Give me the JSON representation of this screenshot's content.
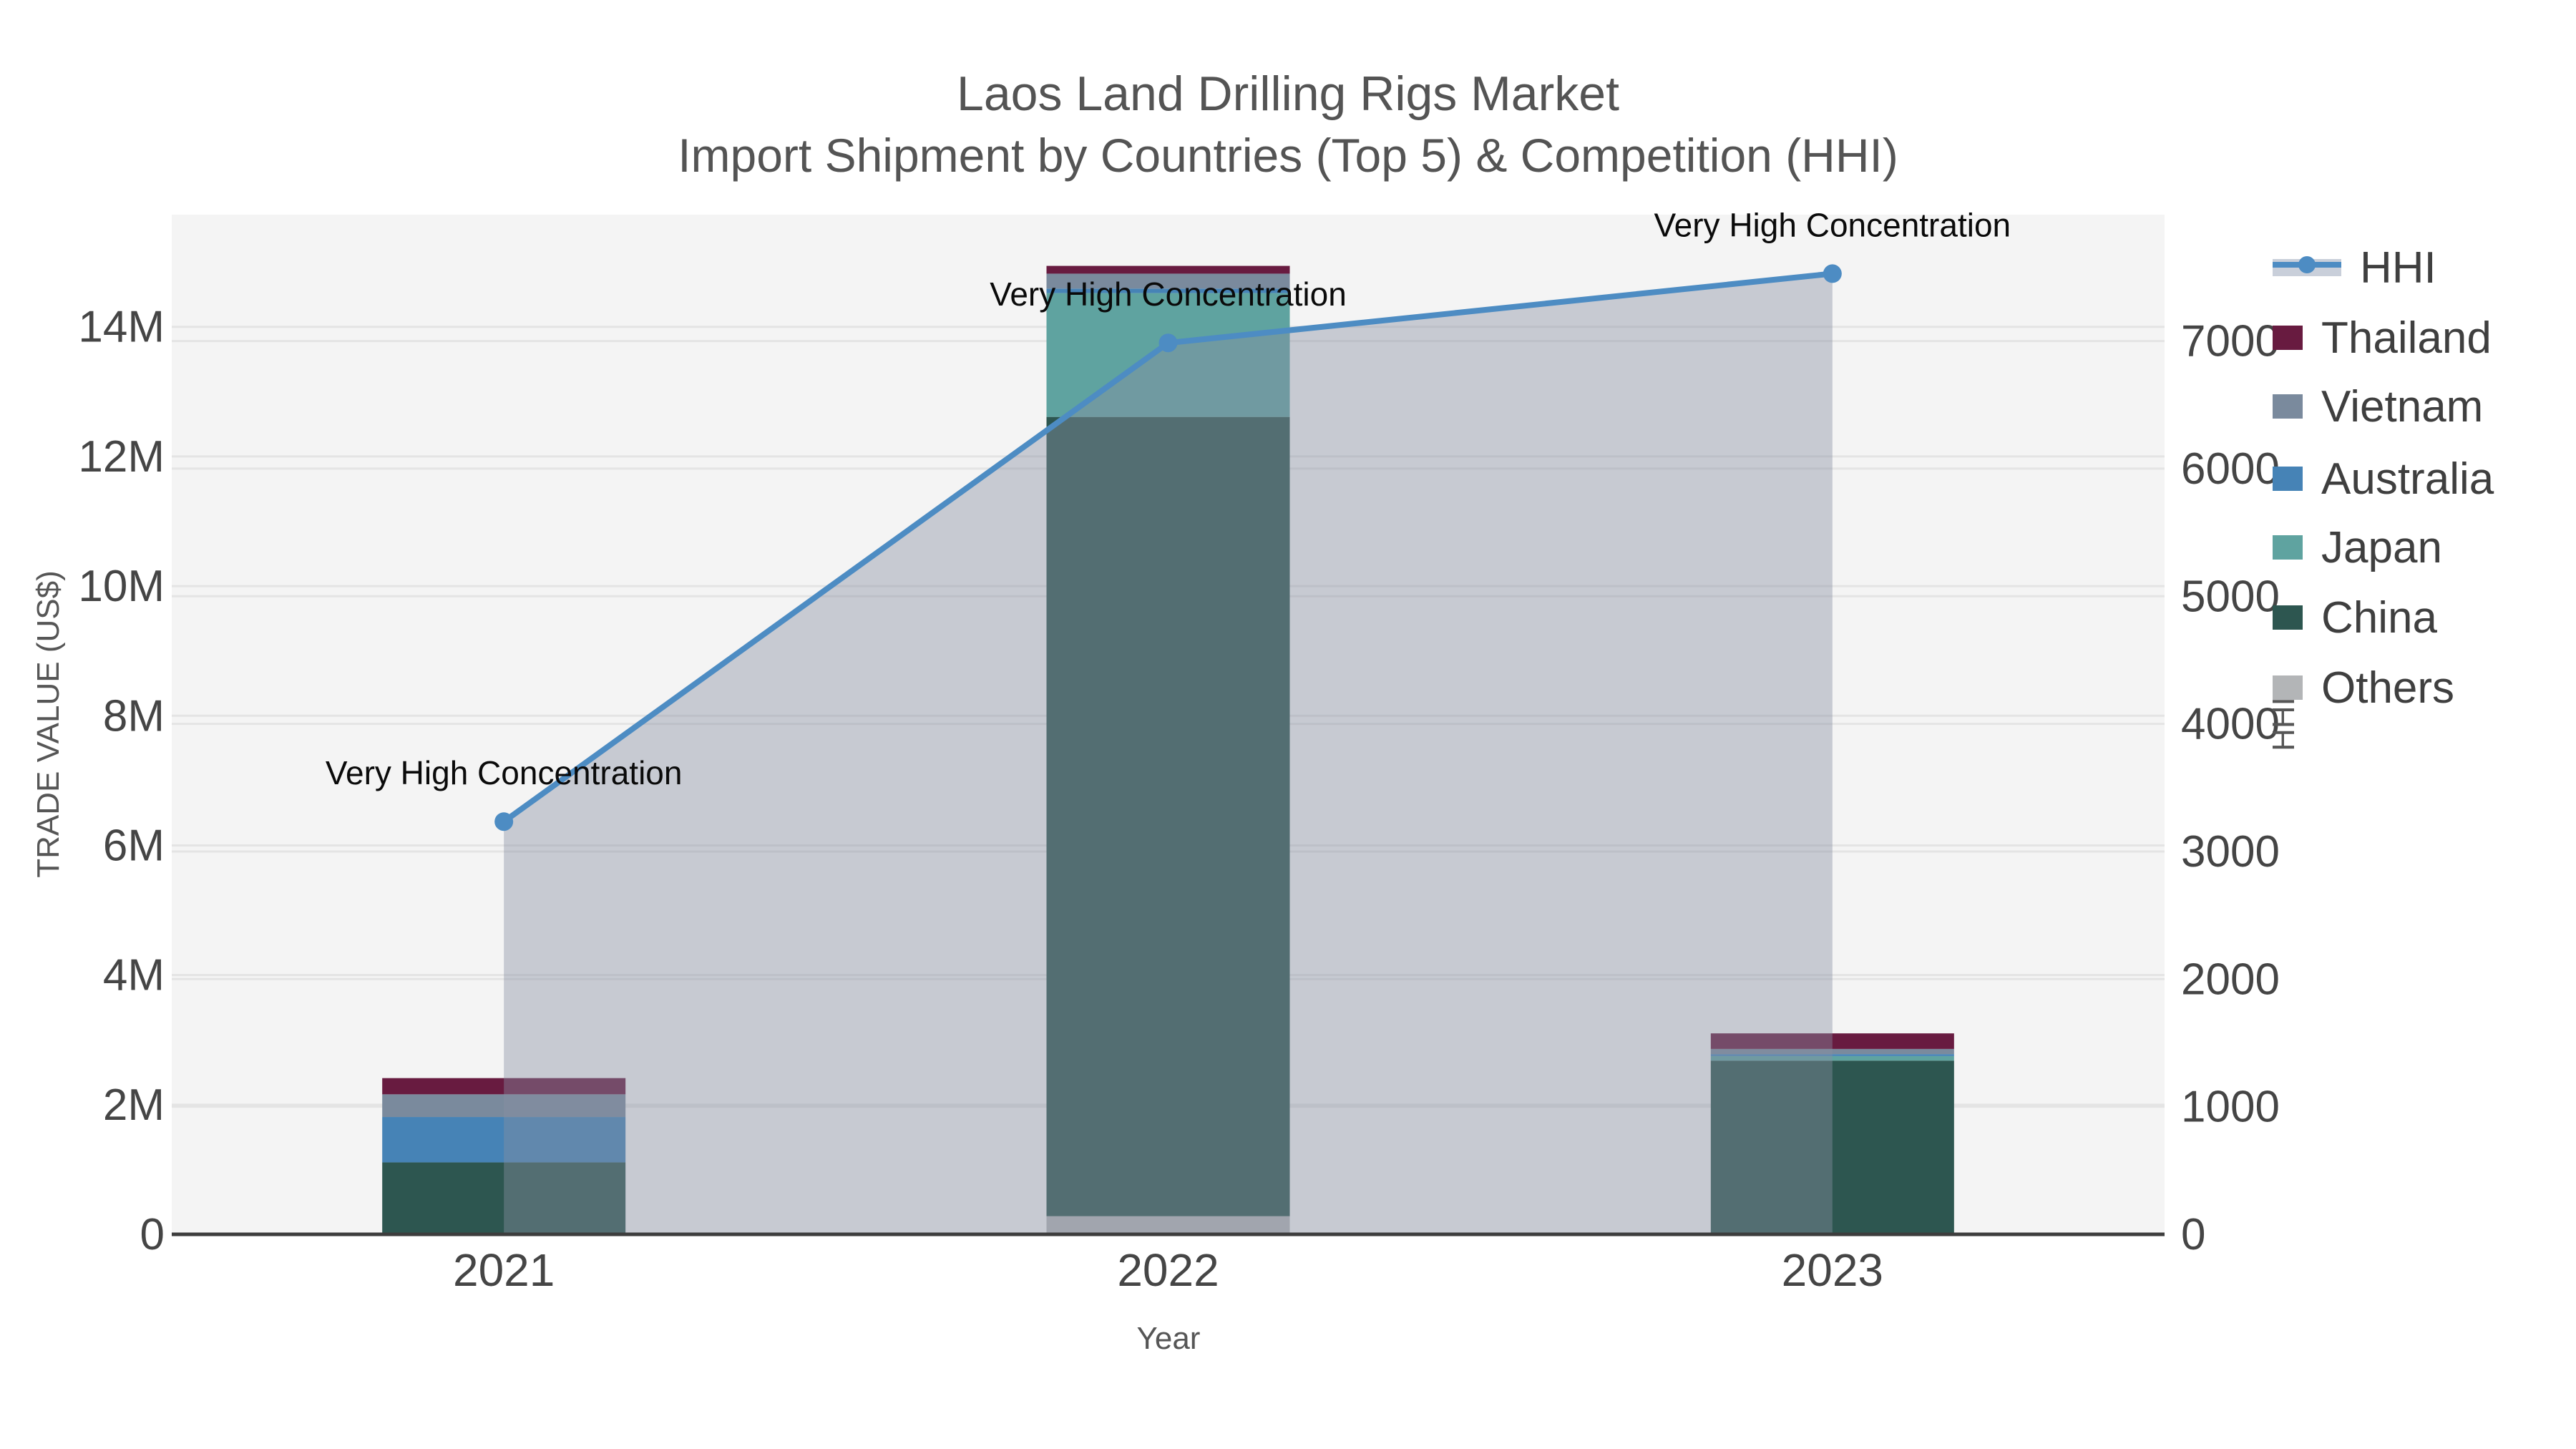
{
  "title": {
    "line1": "Laos Land Drilling Rigs Market",
    "line2": "Import Shipment by Countries (Top 5) & Competition (HHI)"
  },
  "axes": {
    "x": {
      "title": "Year",
      "categories": [
        "2021",
        "2022",
        "2023"
      ]
    },
    "y_left": {
      "title": "TRADE VALUE (US$)",
      "tick_labels": [
        "0",
        "2M",
        "4M",
        "6M",
        "8M",
        "10M",
        "12M",
        "14M"
      ],
      "tick_values_musd": [
        0,
        2,
        4,
        6,
        8,
        10,
        12,
        14
      ]
    },
    "y_right": {
      "title": "HHI",
      "tick_labels": [
        "0",
        "1000",
        "2000",
        "3000",
        "4000",
        "5000",
        "6000",
        "7000"
      ],
      "tick_values": [
        0,
        1000,
        2000,
        3000,
        4000,
        5000,
        6000,
        7000
      ]
    }
  },
  "legend": {
    "order": [
      "HHI",
      "Thailand",
      "Vietnam",
      "Australia",
      "Japan",
      "China",
      "Others"
    ],
    "hhi_band_color": "#c9cfda",
    "hhi_line_color": "#4d8cc3"
  },
  "chart_data": {
    "type": "bar+line",
    "title": "Laos Land Drilling Rigs Market — Import Shipment by Countries (Top 5) & Competition (HHI)",
    "categories": [
      "2021",
      "2022",
      "2023"
    ],
    "unit": "US$ millions",
    "stack_order_bottom_to_top": [
      "Others",
      "China",
      "Japan",
      "Australia",
      "Vietnam",
      "Thailand"
    ],
    "series": [
      {
        "name": "Thailand",
        "type": "bar",
        "color": "#681b40",
        "values_musd": [
          0.25,
          0.12,
          0.24
        ]
      },
      {
        "name": "Vietnam",
        "type": "bar",
        "color": "#7a8a9d",
        "values_musd": [
          0.35,
          0.23,
          0.08
        ]
      },
      {
        "name": "Australia",
        "type": "bar",
        "color": "#4683b6",
        "values_musd": [
          0.7,
          0.07,
          0.03
        ]
      },
      {
        "name": "Japan",
        "type": "bar",
        "color": "#5fa3a0",
        "values_musd": [
          0.0,
          1.91,
          0.07
        ]
      },
      {
        "name": "China",
        "type": "bar",
        "color": "#2d5650",
        "values_musd": [
          1.11,
          12.33,
          2.66
        ]
      },
      {
        "name": "Others",
        "type": "bar",
        "color": "#b3b5b7",
        "values_musd": [
          0.0,
          0.28,
          0.02
        ]
      }
    ],
    "hhi_series": {
      "name": "HHI",
      "type": "line",
      "axis": "right",
      "color": "#4d8cc3",
      "area_fill": "rgba(136,144,162,0.42)",
      "values": [
        3234,
        6985,
        7528
      ]
    },
    "annotations": [
      {
        "text": "Very High Concentration",
        "category": "2021"
      },
      {
        "text": "Very High Concentration",
        "category": "2022"
      },
      {
        "text": "Very High Concentration",
        "category": "2023"
      }
    ],
    "ylim_left_musd": [
      0,
      15.73
    ],
    "ylim_right": [
      0,
      7990
    ],
    "grid": true,
    "plot_bg": "#f4f4f4",
    "grid_color": "#e4e4e4",
    "baseline_color": "#3d3d3d",
    "legend_position": "right"
  }
}
